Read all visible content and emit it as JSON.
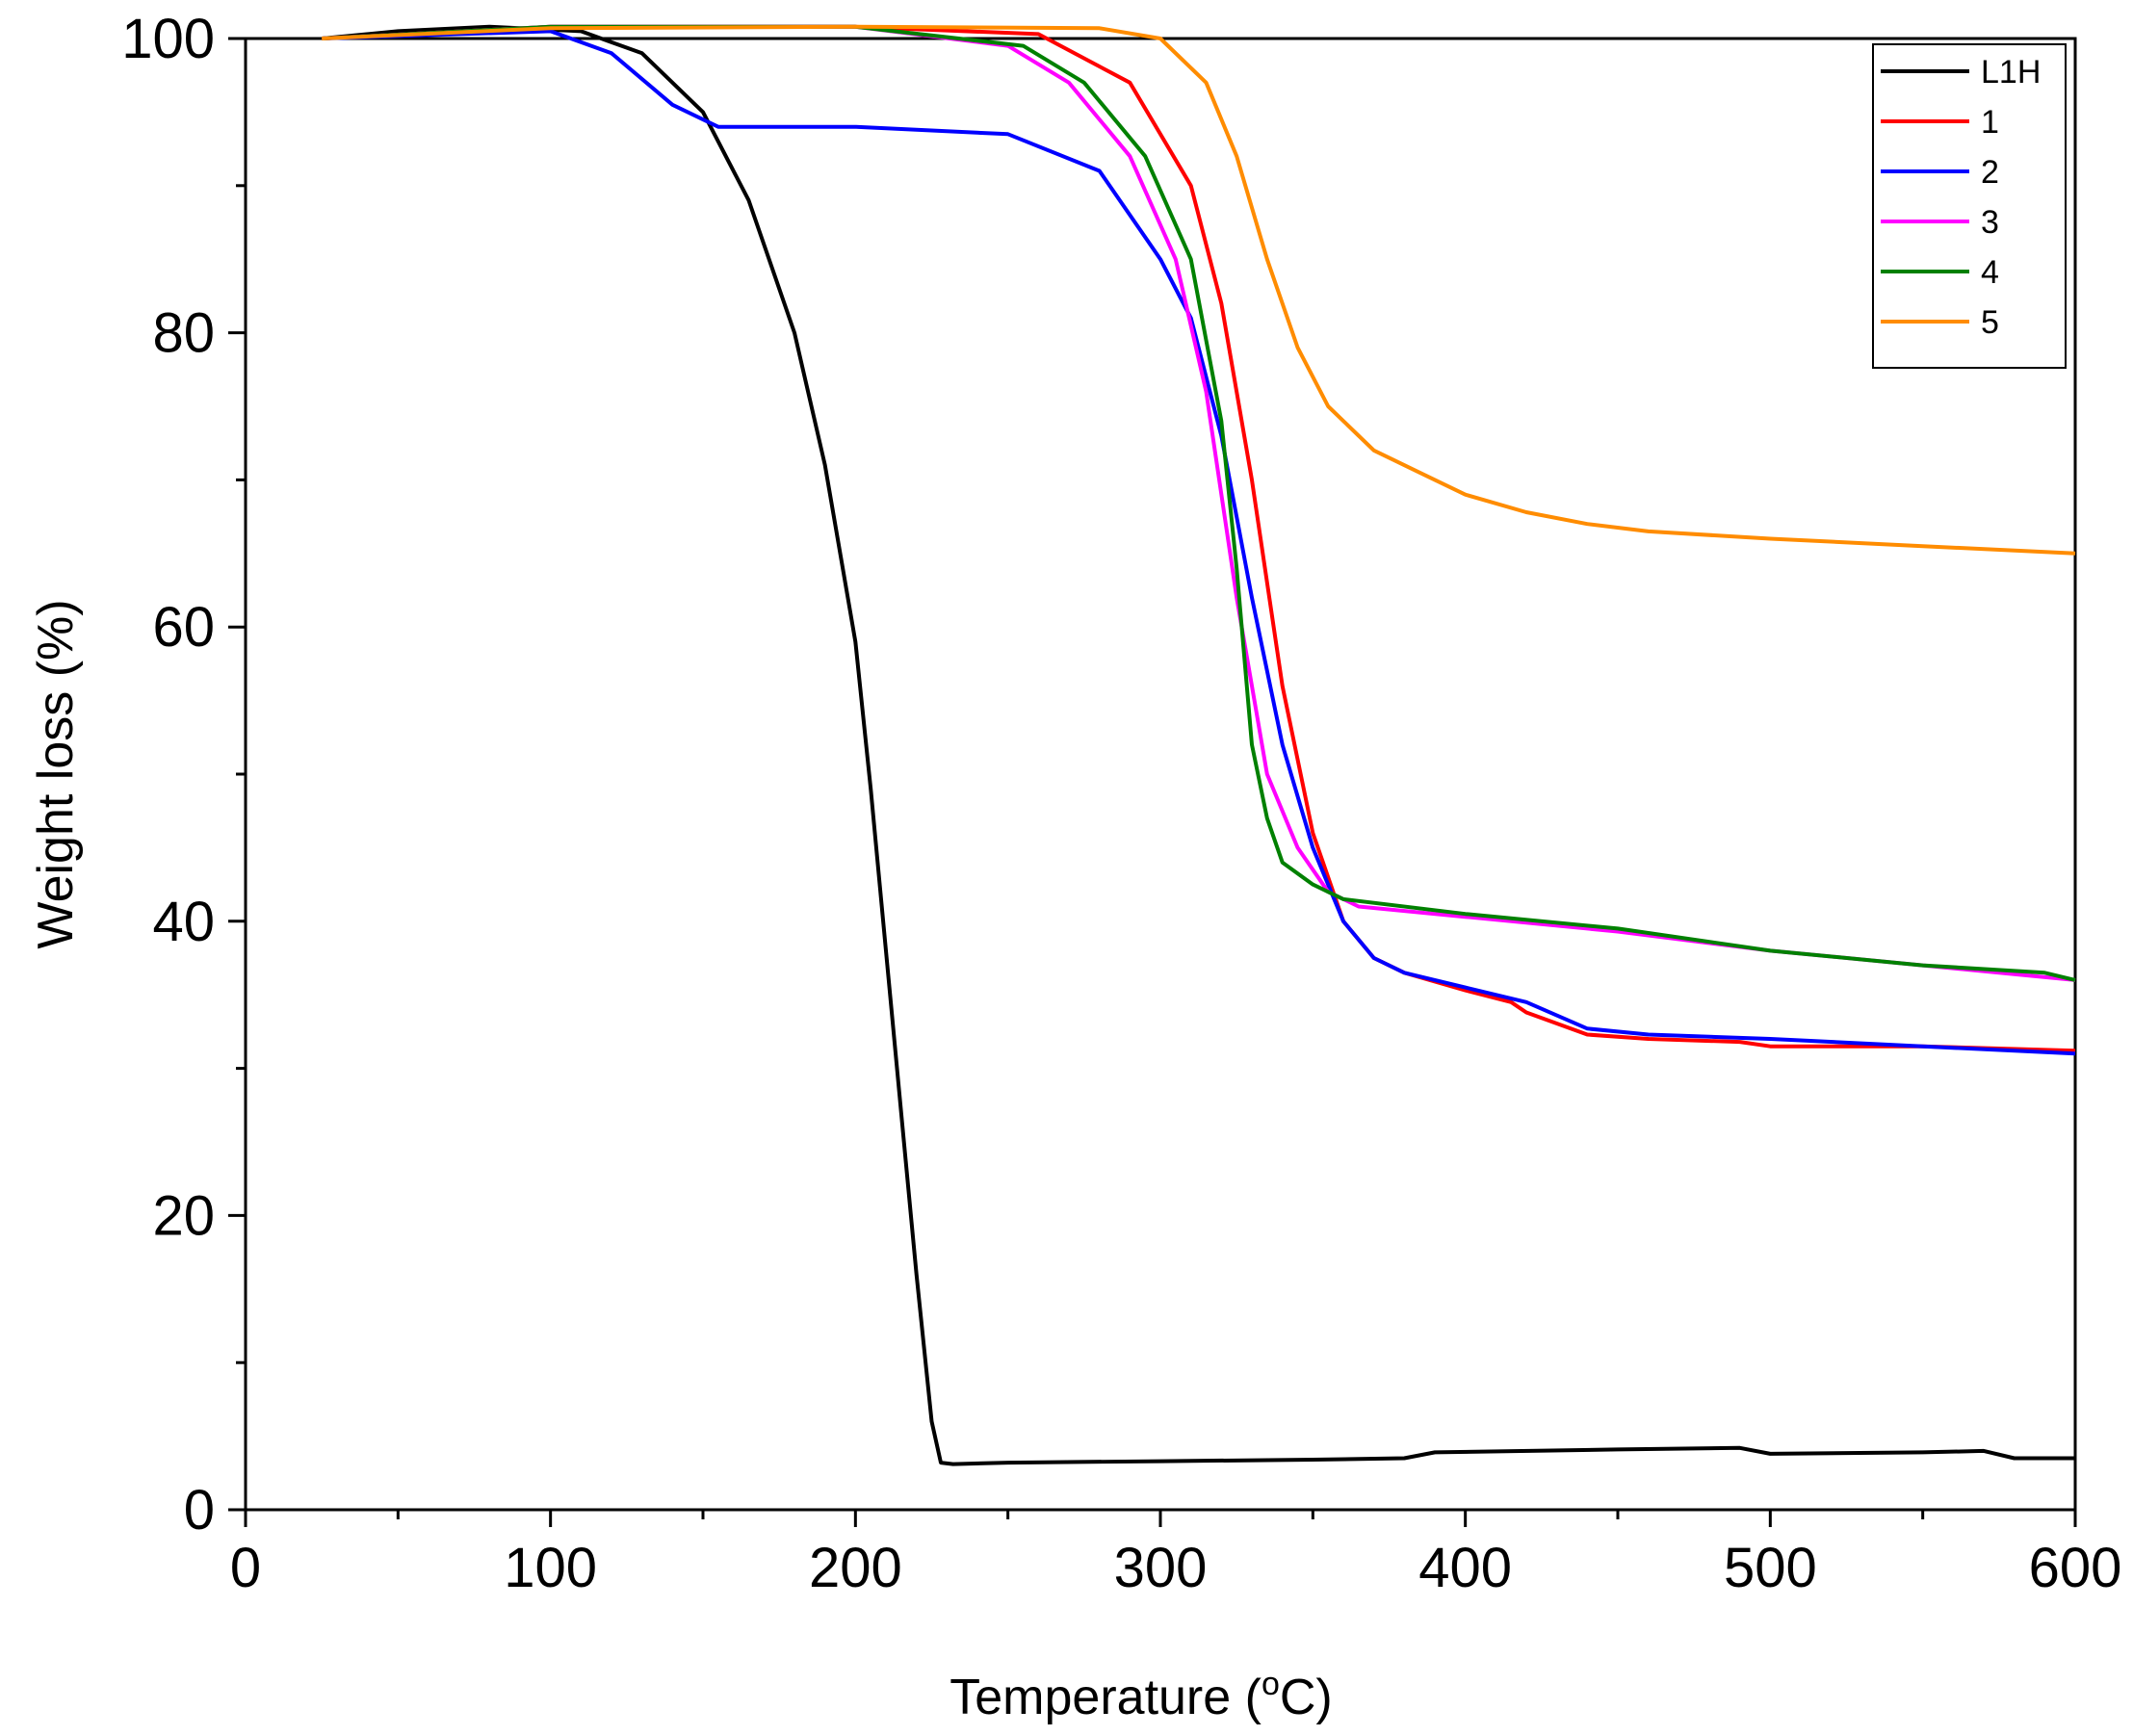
{
  "chart_data": {
    "type": "line",
    "title": "",
    "xlabel": "Temperature (",
    "xlabel_sup": "o",
    "xlabel_suffix": "C)",
    "ylabel": "Weight loss (%)",
    "xlim": [
      0,
      600
    ],
    "ylim": [
      0,
      100
    ],
    "xticks": [
      "0",
      "100",
      "200",
      "300",
      "400",
      "500",
      "600"
    ],
    "yticks": [
      "0",
      "20",
      "40",
      "60",
      "80",
      "100"
    ],
    "grid": false,
    "legend_position": "top-right",
    "series": [
      {
        "name": "L1H",
        "color": "#000000",
        "x": [
          25,
          50,
          80,
          110,
          130,
          150,
          165,
          180,
          190,
          200,
          205,
          210,
          215,
          220,
          225,
          228,
          232,
          250,
          300,
          350,
          380,
          390,
          450,
          490,
          500,
          550,
          570,
          580,
          600
        ],
        "y": [
          100,
          100.5,
          100.8,
          100.5,
          99,
          95,
          89,
          80,
          71,
          59,
          49,
          38,
          27,
          16,
          6,
          3.2,
          3.1,
          3.2,
          3.3,
          3.4,
          3.5,
          3.9,
          4.1,
          4.2,
          3.8,
          3.9,
          4,
          3.5,
          3.5
        ]
      },
      {
        "name": "1",
        "color": "#ff0000",
        "x": [
          25,
          100,
          200,
          260,
          290,
          310,
          320,
          330,
          340,
          350,
          360,
          370,
          380,
          400,
          415,
          420,
          440,
          460,
          490,
          500,
          550,
          600
        ],
        "y": [
          100,
          100.8,
          100.8,
          100.3,
          97,
          90,
          82,
          70,
          56,
          46,
          40,
          37.5,
          36.5,
          35.3,
          34.5,
          33.8,
          32.3,
          32,
          31.8,
          31.5,
          31.5,
          31.2
        ]
      },
      {
        "name": "2",
        "color": "#0000ff",
        "x": [
          25,
          100,
          120,
          140,
          155,
          200,
          250,
          280,
          300,
          310,
          320,
          330,
          340,
          350,
          360,
          370,
          380,
          400,
          420,
          440,
          460,
          500,
          550,
          600
        ],
        "y": [
          100,
          100.5,
          99,
          95.5,
          94,
          94,
          93.5,
          91,
          85,
          81,
          73,
          62,
          52,
          45,
          40,
          37.5,
          36.5,
          35.5,
          34.5,
          32.7,
          32.3,
          32,
          31.5,
          31
        ]
      },
      {
        "name": "3",
        "color": "#ff00ff",
        "x": [
          25,
          100,
          200,
          250,
          270,
          290,
          305,
          315,
          325,
          335,
          345,
          355,
          365,
          400,
          450,
          500,
          550,
          600
        ],
        "y": [
          100,
          100.8,
          100.8,
          99.5,
          97,
          92,
          85,
          76,
          62,
          50,
          45,
          42,
          41,
          40.3,
          39.3,
          38,
          37,
          36
        ]
      },
      {
        "name": "4",
        "color": "#008000",
        "x": [
          25,
          100,
          200,
          255,
          275,
          295,
          310,
          320,
          325,
          330,
          335,
          340,
          350,
          360,
          400,
          450,
          500,
          550,
          590,
          600
        ],
        "y": [
          100,
          100.8,
          100.8,
          99.5,
          97,
          92,
          85,
          74,
          64,
          52,
          47,
          44,
          42.5,
          41.5,
          40.5,
          39.5,
          38,
          37,
          36.5,
          36
        ]
      },
      {
        "name": "5",
        "color": "#ff8c00",
        "x": [
          25,
          100,
          200,
          280,
          300,
          315,
          325,
          335,
          345,
          355,
          370,
          385,
          400,
          420,
          440,
          460,
          500,
          550,
          600
        ],
        "y": [
          100,
          100.7,
          100.8,
          100.7,
          100,
          97,
          92,
          85,
          79,
          75,
          72,
          70.5,
          69,
          67.8,
          67,
          66.5,
          66,
          65.5,
          65
        ]
      }
    ]
  }
}
